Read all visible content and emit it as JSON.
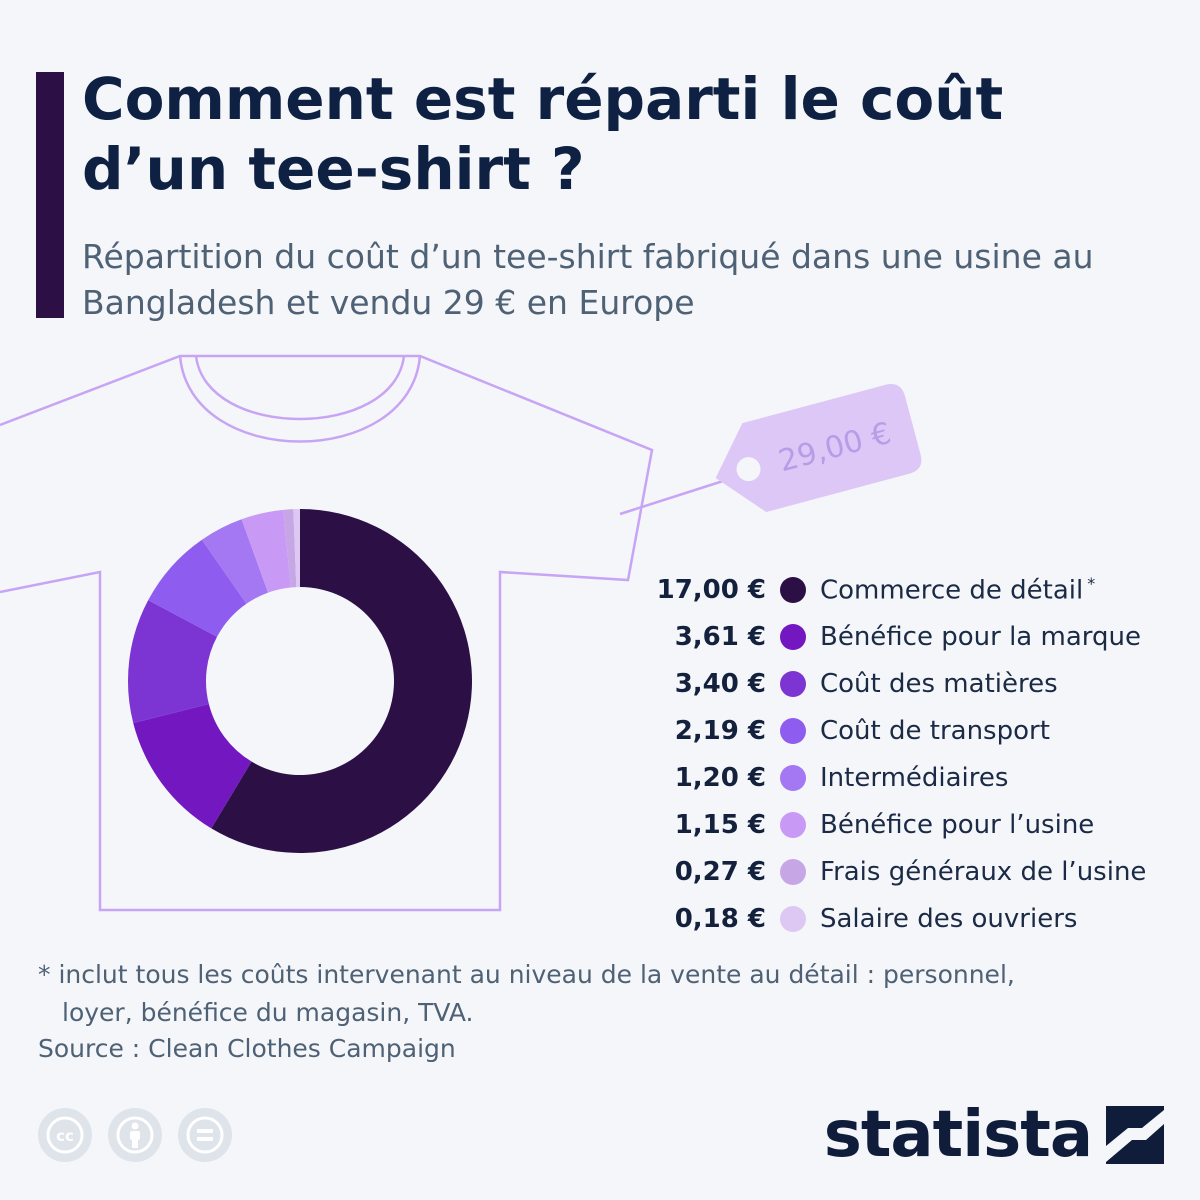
{
  "header": {
    "title": "Comment est réparti le coût d’un tee-shirt ?",
    "subtitle": "Répartition du coût d’un tee-shirt fabriqué dans une usine au Bangladesh et vendu 29 € en Europe"
  },
  "price_tag": {
    "label": "29,00 €"
  },
  "chart_data": {
    "type": "pie",
    "donut": true,
    "title": "Comment est réparti le coût d’un tee-shirt ?",
    "total": 29.0,
    "categories": [
      "Commerce de détail",
      "Bénéfice pour la marque",
      "Coût des matières",
      "Coût de transport",
      "Intermédiaires",
      "Bénéfice pour l’usine",
      "Frais généraux de l’usine",
      "Salaire des ouvriers"
    ],
    "values": [
      17.0,
      3.61,
      3.4,
      2.19,
      1.2,
      1.15,
      0.27,
      0.18
    ],
    "value_labels": [
      "17,00 €",
      "3,61 €",
      "3,40 €",
      "2,19 €",
      "1,20 €",
      "1,15 €",
      "0,27 €",
      "0,18 €"
    ],
    "colors": [
      "#2b0f45",
      "#7318c0",
      "#7c35d3",
      "#8f5cf0",
      "#a478f2",
      "#c89af6",
      "#c7a6e6",
      "#ddc8f3"
    ],
    "legend_position": "right",
    "annotations": [
      "*"
    ]
  },
  "footnote": {
    "line1": "* inclut tous les coûts intervenant au niveau de la vente au détail : personnel,",
    "line2": "loyer, bénéfice du magasin, TVA."
  },
  "source": "Source : Clean Clothes Campaign",
  "license_icons": [
    "creative-commons-icon",
    "attribution-icon",
    "no-derivatives-icon"
  ],
  "brand": {
    "name": "statista"
  }
}
